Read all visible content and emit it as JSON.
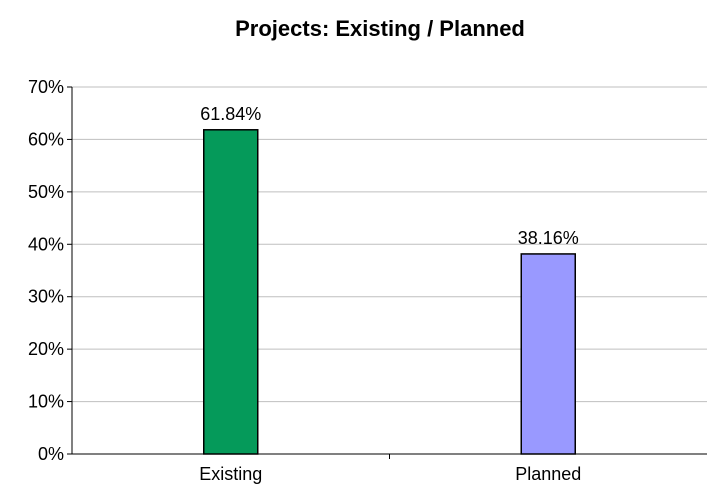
{
  "chart_data": {
    "type": "bar",
    "title": "Projects: Existing / Planned",
    "xlabel": "",
    "ylabel": "",
    "categories": [
      "Existing",
      "Planned"
    ],
    "values": [
      61.84,
      38.16
    ],
    "data_labels": [
      "61.84%",
      "38.16%"
    ],
    "bar_colors": [
      "#059a5a",
      "#9999ff"
    ],
    "ylim": [
      0,
      70
    ],
    "y_ticks": [
      0,
      10,
      20,
      30,
      40,
      50,
      60,
      70
    ],
    "y_tick_labels": [
      "0%",
      "10%",
      "20%",
      "30%",
      "40%",
      "50%",
      "60%",
      "70%"
    ],
    "grid": true,
    "legend": "none"
  }
}
